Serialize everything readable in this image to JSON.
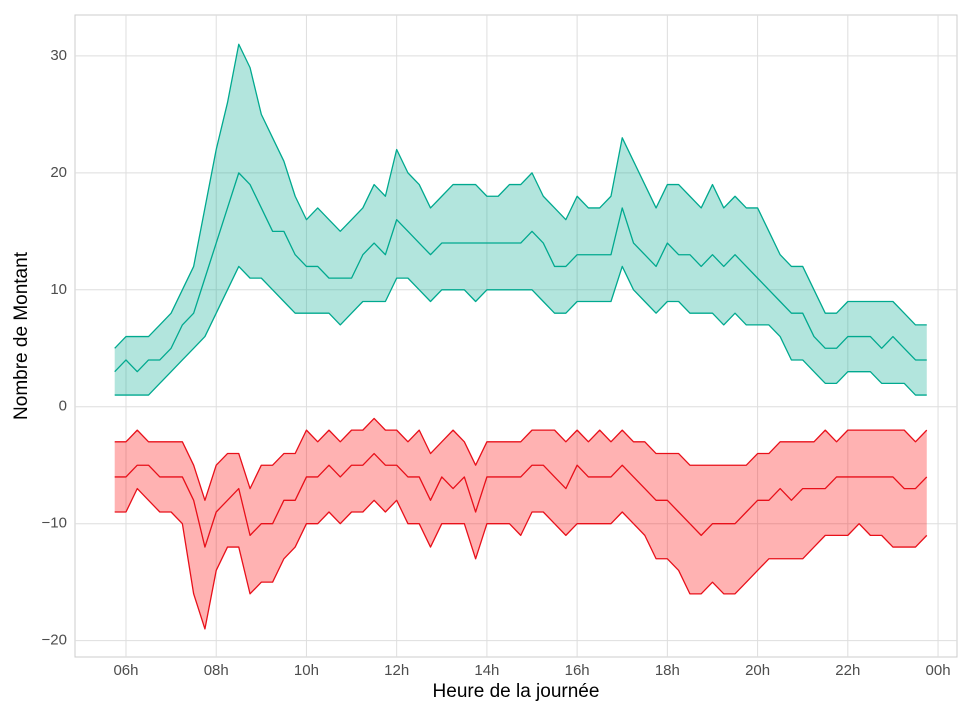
{
  "chart_data": {
    "type": "ribbon",
    "x_label": "Heure de la journée",
    "y_label": "Nombre de Montant",
    "x": [
      5.75,
      6,
      6.25,
      6.5,
      6.75,
      7,
      7.25,
      7.5,
      7.75,
      8,
      8.25,
      8.5,
      8.75,
      9,
      9.25,
      9.5,
      9.75,
      10,
      10.25,
      10.5,
      10.75,
      11,
      11.25,
      11.5,
      11.75,
      12,
      12.25,
      12.5,
      12.75,
      13,
      13.25,
      13.5,
      13.75,
      14,
      14.25,
      14.5,
      14.75,
      15,
      15.25,
      15.5,
      15.75,
      16,
      16.25,
      16.5,
      16.75,
      17,
      17.25,
      17.5,
      17.75,
      18,
      18.25,
      18.5,
      18.75,
      19,
      19.25,
      19.5,
      19.75,
      20,
      20.25,
      20.5,
      20.75,
      21,
      21.25,
      21.5,
      21.75,
      22,
      22.25,
      22.5,
      22.75,
      23,
      23.25,
      23.5,
      23.75
    ],
    "series": [
      {
        "color": "#00a98f",
        "upper": [
          5,
          6,
          6,
          6,
          7,
          8,
          10,
          12,
          17,
          22,
          26,
          31,
          29,
          25,
          23,
          21,
          18,
          16,
          17,
          16,
          15,
          16,
          17,
          19,
          18,
          22,
          20,
          19,
          17,
          18,
          19,
          19,
          19,
          18,
          18,
          19,
          19,
          20,
          18,
          17,
          16,
          18,
          17,
          17,
          18,
          23,
          21,
          19,
          17,
          19,
          19,
          18,
          17,
          19,
          17,
          18,
          17,
          17,
          15,
          13,
          12,
          12,
          10,
          8,
          8,
          9,
          9,
          9,
          9,
          9,
          8,
          7,
          7
        ],
        "values": [
          3,
          4,
          3,
          4,
          4,
          5,
          7,
          8,
          11,
          14,
          17,
          20,
          19,
          17,
          15,
          15,
          13,
          12,
          12,
          11,
          11,
          11,
          13,
          14,
          13,
          16,
          15,
          14,
          13,
          14,
          14,
          14,
          14,
          14,
          14,
          14,
          14,
          15,
          14,
          12,
          12,
          13,
          13,
          13,
          13,
          17,
          14,
          13,
          12,
          14,
          13,
          13,
          12,
          13,
          12,
          13,
          12,
          11,
          10,
          9,
          8,
          8,
          6,
          5,
          5,
          6,
          6,
          6,
          5,
          6,
          5,
          4,
          4
        ],
        "lower": [
          1,
          1,
          1,
          1,
          2,
          3,
          4,
          5,
          6,
          8,
          10,
          12,
          11,
          11,
          10,
          9,
          8,
          8,
          8,
          8,
          7,
          8,
          9,
          9,
          9,
          11,
          11,
          10,
          9,
          10,
          10,
          10,
          9,
          10,
          10,
          10,
          10,
          10,
          9,
          8,
          8,
          9,
          9,
          9,
          9,
          12,
          10,
          9,
          8,
          9,
          9,
          8,
          8,
          8,
          7,
          8,
          7,
          7,
          7,
          6,
          4,
          4,
          3,
          2,
          2,
          3,
          3,
          3,
          2,
          2,
          2,
          1,
          1
        ]
      },
      {
        "color": "#ff0000",
        "upper": [
          -3,
          -3,
          -2,
          -3,
          -3,
          -3,
          -3,
          -5,
          -8,
          -5,
          -4,
          -4,
          -7,
          -5,
          -5,
          -4,
          -4,
          -2,
          -3,
          -2,
          -3,
          -2,
          -2,
          -1,
          -2,
          -2,
          -3,
          -2,
          -4,
          -3,
          -2,
          -3,
          -5,
          -3,
          -3,
          -3,
          -3,
          -2,
          -2,
          -2,
          -3,
          -2,
          -3,
          -2,
          -3,
          -2,
          -3,
          -3,
          -4,
          -4,
          -4,
          -5,
          -5,
          -5,
          -5,
          -5,
          -5,
          -4,
          -4,
          -3,
          -3,
          -3,
          -3,
          -2,
          -3,
          -2,
          -2,
          -2,
          -2,
          -2,
          -2,
          -3,
          -2
        ],
        "values": [
          -6,
          -6,
          -5,
          -5,
          -6,
          -6,
          -6,
          -8,
          -12,
          -9,
          -8,
          -7,
          -11,
          -10,
          -10,
          -8,
          -8,
          -6,
          -6,
          -5,
          -6,
          -5,
          -5,
          -4,
          -5,
          -5,
          -6,
          -6,
          -8,
          -6,
          -7,
          -6,
          -9,
          -6,
          -6,
          -6,
          -6,
          -5,
          -5,
          -6,
          -7,
          -5,
          -6,
          -6,
          -6,
          -5,
          -6,
          -7,
          -8,
          -8,
          -9,
          -10,
          -11,
          -10,
          -10,
          -10,
          -9,
          -8,
          -8,
          -7,
          -8,
          -7,
          -7,
          -7,
          -6,
          -6,
          -6,
          -6,
          -6,
          -6,
          -7,
          -7,
          -6
        ],
        "lower": [
          -9,
          -9,
          -7,
          -8,
          -9,
          -9,
          -10,
          -16,
          -19,
          -14,
          -12,
          -12,
          -16,
          -15,
          -15,
          -13,
          -12,
          -10,
          -10,
          -9,
          -10,
          -9,
          -9,
          -8,
          -9,
          -8,
          -10,
          -10,
          -12,
          -10,
          -10,
          -10,
          -13,
          -10,
          -10,
          -10,
          -11,
          -9,
          -9,
          -10,
          -11,
          -10,
          -10,
          -10,
          -10,
          -9,
          -10,
          -11,
          -13,
          -13,
          -14,
          -16,
          -16,
          -15,
          -16,
          -16,
          -15,
          -14,
          -13,
          -13,
          -13,
          -13,
          -12,
          -11,
          -11,
          -11,
          -10,
          -11,
          -11,
          -12,
          -12,
          -12,
          -11
        ],
        "line_color": "#e8101a"
      }
    ],
    "xlim": [
      4.87,
      24.42
    ],
    "ylim": [
      -21.4,
      33.5
    ],
    "xticks": [
      {
        "value": 6,
        "label": "06h"
      },
      {
        "value": 8,
        "label": "08h"
      },
      {
        "value": 10,
        "label": "10h"
      },
      {
        "value": 12,
        "label": "12h"
      },
      {
        "value": 14,
        "label": "14h"
      },
      {
        "value": 16,
        "label": "16h"
      },
      {
        "value": 18,
        "label": "18h"
      },
      {
        "value": 20,
        "label": "20h"
      },
      {
        "value": 22,
        "label": "22h"
      },
      {
        "value": 24,
        "label": "00h"
      }
    ],
    "yticks": [
      {
        "value": -20,
        "label": "−20"
      },
      {
        "value": -10,
        "label": "−10"
      },
      0,
      10,
      20,
      30
    ],
    "grid": true
  }
}
